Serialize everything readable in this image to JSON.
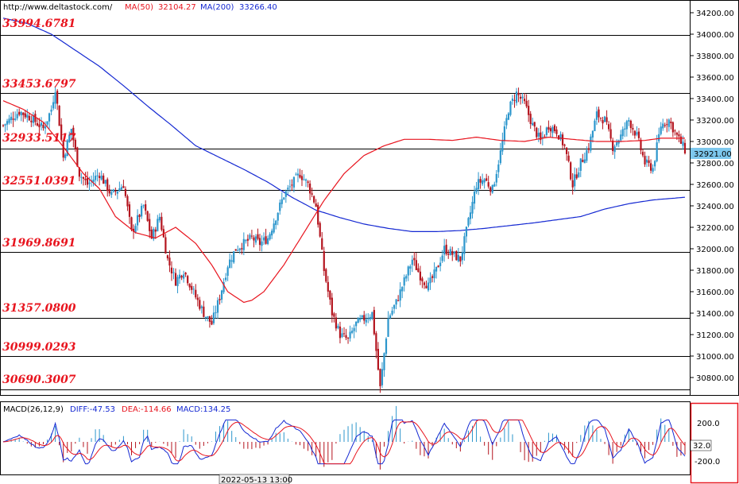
{
  "header": {
    "url": "http://www.deltastock.com/",
    "ma50_label": "MA(50)",
    "ma50_value": "32104.27",
    "ma200_label": "MA(200)",
    "ma200_value": "33266.40"
  },
  "colors": {
    "ma50": "#e8141e",
    "ma200": "#1428d2",
    "bull": "#2c96cc",
    "bear": "#b4141e",
    "level_text": "#e8141e",
    "price_tag": "#7ec8ee"
  },
  "chart_data": [
    {
      "type": "candlestick",
      "ylim": [
        30650,
        34300
      ],
      "y_ticks": [
        "34200.00",
        "34000.00",
        "33800.00",
        "33600.00",
        "33400.00",
        "33200.00",
        "33000.00",
        "32800.00",
        "32600.00",
        "32400.00",
        "32200.00",
        "32000.00",
        "31800.00",
        "31600.00",
        "31400.00",
        "31200.00",
        "31000.00",
        "30800.00"
      ],
      "levels": [
        {
          "value": 33994.6781,
          "label": "33994.6781"
        },
        {
          "value": 33453.6797,
          "label": "33453.6797"
        },
        {
          "value": 32933.5117,
          "label": "32933.5117"
        },
        {
          "value": 32551.0391,
          "label": "32551.0391"
        },
        {
          "value": 31969.8691,
          "label": "31969.8691"
        },
        {
          "value": 31357.08,
          "label": "31357.0800"
        },
        {
          "value": 30999.0293,
          "label": "30999.0293"
        },
        {
          "value": 30690.3007,
          "label": "30690.3007"
        }
      ],
      "last_price": "32921.00",
      "price_anchors": [
        [
          0,
          33150
        ],
        [
          8,
          33280
        ],
        [
          14,
          33220
        ],
        [
          20,
          33120
        ],
        [
          24,
          33300
        ],
        [
          26,
          33500
        ],
        [
          30,
          32850
        ],
        [
          34,
          33120
        ],
        [
          38,
          32700
        ],
        [
          42,
          32600
        ],
        [
          48,
          32700
        ],
        [
          54,
          32500
        ],
        [
          60,
          32600
        ],
        [
          64,
          32150
        ],
        [
          70,
          32400
        ],
        [
          74,
          32100
        ],
        [
          78,
          32300
        ],
        [
          82,
          31900
        ],
        [
          86,
          31700
        ],
        [
          90,
          31800
        ],
        [
          96,
          31550
        ],
        [
          100,
          31400
        ],
        [
          104,
          31300
        ],
        [
          108,
          31550
        ],
        [
          112,
          31850
        ],
        [
          116,
          32000
        ],
        [
          120,
          32050
        ],
        [
          124,
          32100
        ],
        [
          128,
          32050
        ],
        [
          132,
          32100
        ],
        [
          136,
          32300
        ],
        [
          140,
          32500
        ],
        [
          144,
          32600
        ],
        [
          148,
          32700
        ],
        [
          152,
          32600
        ],
        [
          156,
          32400
        ],
        [
          160,
          31800
        ],
        [
          164,
          31400
        ],
        [
          168,
          31200
        ],
        [
          172,
          31150
        ],
        [
          176,
          31300
        ],
        [
          180,
          31350
        ],
        [
          184,
          31400
        ],
        [
          188,
          30700
        ],
        [
          192,
          31350
        ],
        [
          196,
          31500
        ],
        [
          200,
          31700
        ],
        [
          204,
          31900
        ],
        [
          208,
          31750
        ],
        [
          212,
          31650
        ],
        [
          216,
          31800
        ],
        [
          220,
          32000
        ],
        [
          224,
          31950
        ],
        [
          228,
          31900
        ],
        [
          232,
          32250
        ],
        [
          236,
          32600
        ],
        [
          240,
          32650
        ],
        [
          244,
          32550
        ],
        [
          248,
          32900
        ],
        [
          252,
          33300
        ],
        [
          256,
          33450
        ],
        [
          260,
          33350
        ],
        [
          264,
          33150
        ],
        [
          268,
          33000
        ],
        [
          272,
          33150
        ],
        [
          276,
          33100
        ],
        [
          280,
          32950
        ],
        [
          284,
          32600
        ],
        [
          288,
          32800
        ],
        [
          292,
          32950
        ],
        [
          296,
          33250
        ],
        [
          300,
          33200
        ],
        [
          304,
          32950
        ],
        [
          308,
          33050
        ],
        [
          312,
          33200
        ],
        [
          316,
          33050
        ],
        [
          320,
          32800
        ],
        [
          324,
          32750
        ],
        [
          328,
          33150
        ],
        [
          332,
          33200
        ],
        [
          336,
          33050
        ],
        [
          340,
          32921
        ]
      ],
      "ma50_anchors": [
        [
          0,
          33380
        ],
        [
          10,
          33300
        ],
        [
          20,
          33180
        ],
        [
          30,
          32950
        ],
        [
          40,
          32700
        ],
        [
          48,
          32560
        ],
        [
          56,
          32300
        ],
        [
          66,
          32150
        ],
        [
          76,
          32100
        ],
        [
          86,
          32200
        ],
        [
          96,
          32050
        ],
        [
          104,
          31850
        ],
        [
          112,
          31600
        ],
        [
          120,
          31500
        ],
        [
          124,
          31520
        ],
        [
          130,
          31600
        ],
        [
          140,
          31850
        ],
        [
          150,
          32150
        ],
        [
          160,
          32450
        ],
        [
          170,
          32700
        ],
        [
          180,
          32870
        ],
        [
          190,
          32960
        ],
        [
          200,
          33020
        ],
        [
          212,
          33020
        ],
        [
          224,
          33010
        ],
        [
          236,
          33040
        ],
        [
          248,
          33010
        ],
        [
          260,
          33000
        ],
        [
          272,
          33040
        ],
        [
          284,
          33020
        ],
        [
          296,
          33000
        ],
        [
          308,
          33000
        ],
        [
          320,
          33010
        ],
        [
          328,
          33030
        ],
        [
          340,
          33030
        ]
      ],
      "ma200_anchors": [
        [
          0,
          34150
        ],
        [
          12,
          34100
        ],
        [
          24,
          34000
        ],
        [
          36,
          33850
        ],
        [
          48,
          33700
        ],
        [
          60,
          33520
        ],
        [
          72,
          33330
        ],
        [
          84,
          33150
        ],
        [
          96,
          32960
        ],
        [
          108,
          32850
        ],
        [
          120,
          32740
        ],
        [
          132,
          32620
        ],
        [
          144,
          32480
        ],
        [
          156,
          32360
        ],
        [
          168,
          32290
        ],
        [
          180,
          32230
        ],
        [
          192,
          32190
        ],
        [
          204,
          32160
        ],
        [
          216,
          32160
        ],
        [
          228,
          32170
        ],
        [
          240,
          32190
        ],
        [
          252,
          32215
        ],
        [
          264,
          32240
        ],
        [
          276,
          32270
        ],
        [
          288,
          32300
        ],
        [
          300,
          32370
        ],
        [
          312,
          32420
        ],
        [
          324,
          32455
        ],
        [
          340,
          32480
        ]
      ],
      "series": [
        {
          "name": "MA(50)",
          "value": "32104.27"
        },
        {
          "name": "MA(200)",
          "value": "33266.40"
        }
      ]
    },
    {
      "type": "bar",
      "title": "MACD(26,12,9)",
      "ylim": [
        -450,
        450
      ],
      "y_ticks": [
        "200.0",
        "-200.0"
      ],
      "current_value": "32.0",
      "indicators": [
        {
          "name": "DIFF",
          "label": "DIFF:-47.53",
          "value": -47.53
        },
        {
          "name": "DEA",
          "label": "DEA:-114.66",
          "value": -114.66
        },
        {
          "name": "MACD",
          "label": "MACD:134.25",
          "value": 134.25
        }
      ]
    }
  ],
  "time_label": "2022-05-13 13:00"
}
